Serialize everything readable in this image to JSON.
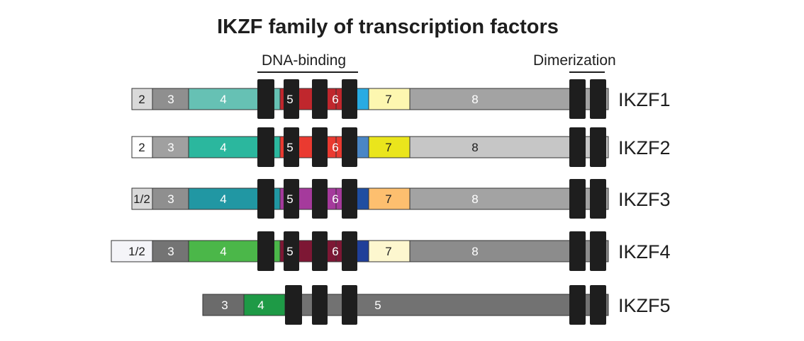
{
  "title": "IKZF family of transcription factors",
  "domains": {
    "dna_binding": "DNA-binding",
    "dimerization": "Dimerization"
  },
  "proteins": [
    {
      "name": "IKZF1",
      "exons": [
        {
          "label": "2",
          "color": "#d9d9d9"
        },
        {
          "label": "3",
          "color": "#8f8f8f"
        },
        {
          "label": "4",
          "color": "#66c1b4"
        },
        {
          "label": "5",
          "color": "#c0272d"
        },
        {
          "label": "6",
          "color": "#c0272d"
        },
        {
          "label": "",
          "color": "#29abe2"
        },
        {
          "label": "7",
          "color": "#fdf7b0"
        },
        {
          "label": "8",
          "color": "#a3a3a3"
        }
      ]
    },
    {
      "name": "IKZF2",
      "exons": [
        {
          "label": "2",
          "color": "#ffffff"
        },
        {
          "label": "3",
          "color": "#a0a0a0"
        },
        {
          "label": "4",
          "color": "#2bb79e"
        },
        {
          "label": "5",
          "color": "#ea3a30"
        },
        {
          "label": "6",
          "color": "#ea3a30"
        },
        {
          "label": "",
          "color": "#4a86c5"
        },
        {
          "label": "7",
          "color": "#eae51c"
        },
        {
          "label": "8",
          "color": "#c6c6c6"
        }
      ]
    },
    {
      "name": "IKZF3",
      "exons": [
        {
          "label": "1/2",
          "color": "#d9d9d9"
        },
        {
          "label": "3",
          "color": "#8f8f8f"
        },
        {
          "label": "4",
          "color": "#2197a3"
        },
        {
          "label": "5",
          "color": "#a53a9c"
        },
        {
          "label": "6",
          "color": "#a53a9c"
        },
        {
          "label": "",
          "color": "#1f4ea1"
        },
        {
          "label": "7",
          "color": "#fdbf6f"
        },
        {
          "label": "8",
          "color": "#a3a3a3"
        }
      ]
    },
    {
      "name": "IKZF4",
      "exons": [
        {
          "label": "1/2",
          "color": "#f4f4f8"
        },
        {
          "label": "3",
          "color": "#747474"
        },
        {
          "label": "4",
          "color": "#4bb749"
        },
        {
          "label": "5",
          "color": "#7d1734"
        },
        {
          "label": "6",
          "color": "#7d1734"
        },
        {
          "label": "",
          "color": "#1f3f99"
        },
        {
          "label": "7",
          "color": "#fdf7cf"
        },
        {
          "label": "8",
          "color": "#8c8c8c"
        }
      ]
    },
    {
      "name": "IKZF5",
      "exons": [
        {
          "label": "3",
          "color": "#6b6b6b"
        },
        {
          "label": "4",
          "color": "#1e9a46"
        },
        {
          "label": "5",
          "color": "#727272"
        }
      ]
    }
  ],
  "colors": {
    "zinc_finger": "#1e1e1e",
    "outline": "#333333",
    "text_dark": "#1e1e1e",
    "text_light": "#ffffff"
  }
}
